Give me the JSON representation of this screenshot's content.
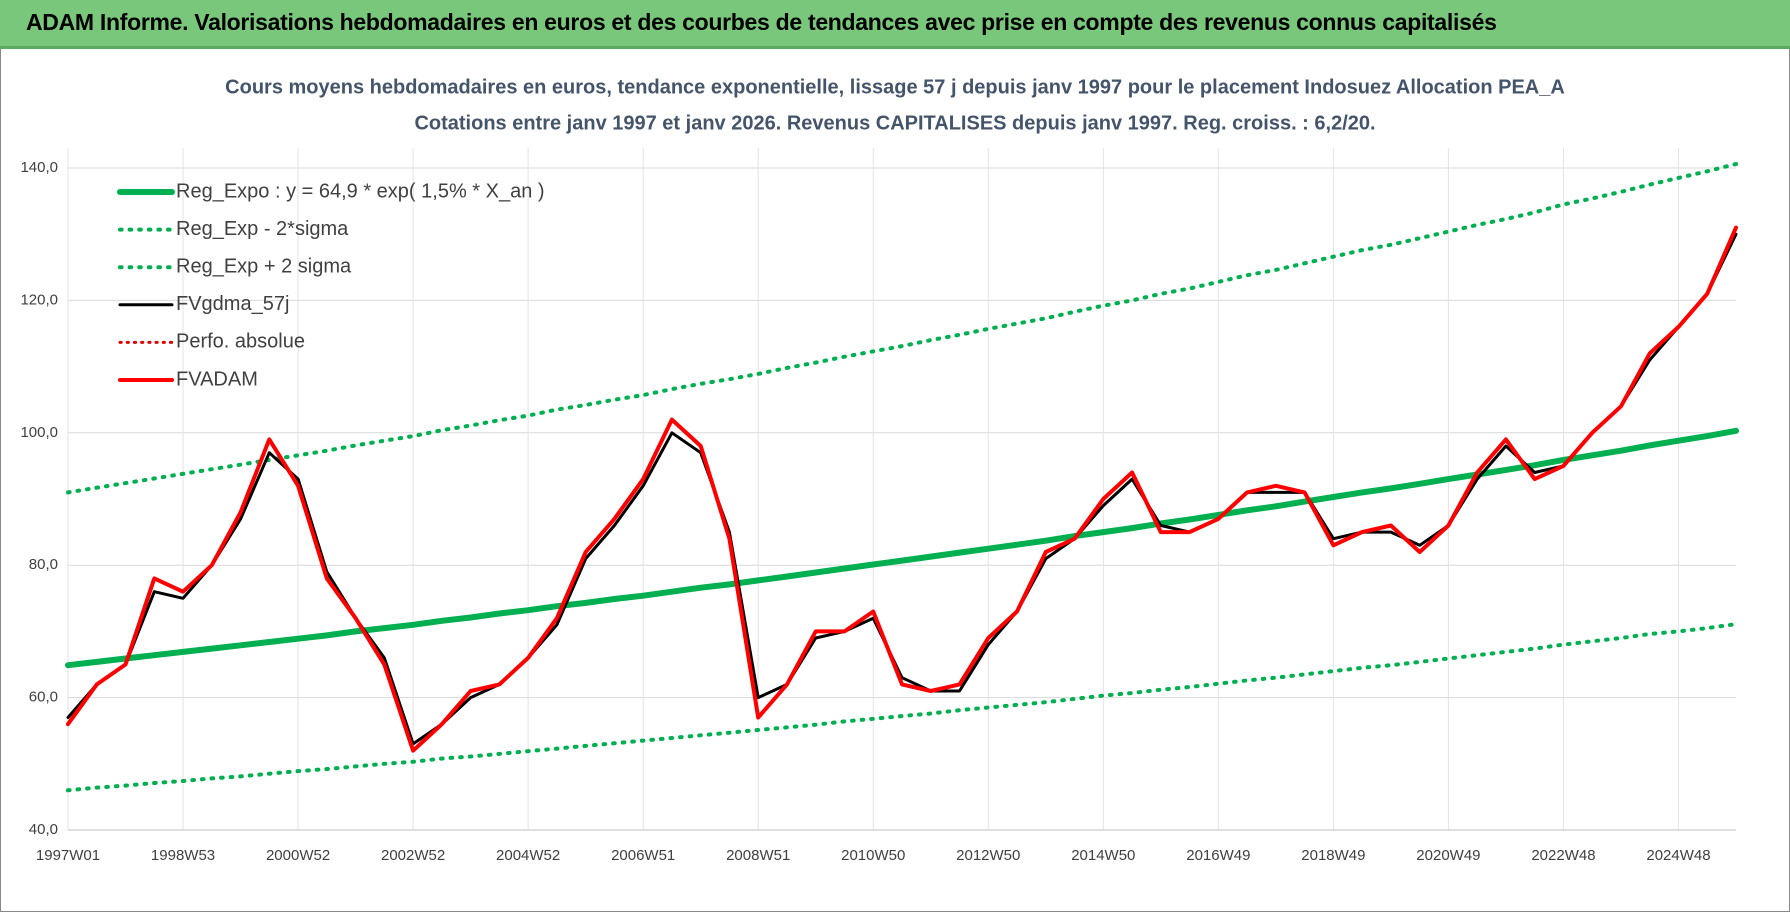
{
  "header": {
    "title": "ADAM Informe. Valorisations hebdomadaires en euros et des courbes de tendances avec prise en compte des revenus connus capitalisés"
  },
  "chart_data": {
    "type": "line",
    "title": "Cours moyens hebdomadaires en euros, tendance exponentielle, lissage 57 j depuis janv 1997 pour le placement Indosuez Allocation PEA_A",
    "subtitle": "Cotations entre janv 1997 et janv 2026. Revenus CAPITALISES depuis janv 1997. Reg. croiss. : 6,2/20.",
    "categories": [
      "1997W01",
      null,
      null,
      null,
      "1998W53",
      null,
      null,
      null,
      "2000W52",
      null,
      null,
      null,
      "2002W52",
      null,
      null,
      null,
      "2004W52",
      null,
      null,
      null,
      "2006W51",
      null,
      null,
      null,
      "2008W51",
      null,
      null,
      null,
      "2010W50",
      null,
      null,
      null,
      "2012W50",
      null,
      null,
      null,
      "2014W50",
      null,
      null,
      null,
      "2016W49",
      null,
      null,
      null,
      "2018W49",
      null,
      null,
      null,
      "2020W49",
      null,
      null,
      null,
      "2022W48",
      null,
      null,
      null,
      "2024W48",
      null,
      null
    ],
    "ylim": [
      40,
      140
    ],
    "yticks": [
      {
        "value": 40,
        "label": "40,0"
      },
      {
        "value": 60,
        "label": "60,0"
      },
      {
        "value": 80,
        "label": "80,0"
      },
      {
        "value": 100,
        "label": "100,0"
      },
      {
        "value": 120,
        "label": "120,0"
      },
      {
        "value": 140,
        "label": "140,0"
      }
    ],
    "grid": true,
    "legend": "top-left",
    "series": [
      {
        "name": "Reg_Expo : y = 64,9 * exp( 1,5% *  X_an )",
        "color": "#00b050",
        "style": "solid",
        "width": 6,
        "values": [
          64.9,
          65.4,
          65.9,
          66.4,
          66.9,
          67.4,
          67.9,
          68.4,
          68.9,
          69.4,
          70.0,
          70.5,
          71.0,
          71.6,
          72.1,
          72.7,
          73.2,
          73.8,
          74.3,
          74.9,
          75.4,
          76.0,
          76.6,
          77.1,
          77.7,
          78.3,
          78.9,
          79.5,
          80.1,
          80.7,
          81.3,
          81.9,
          82.5,
          83.1,
          83.7,
          84.4,
          85.0,
          85.6,
          86.3,
          86.9,
          87.6,
          88.3,
          88.9,
          89.6,
          90.3,
          91.0,
          91.6,
          92.3,
          93.0,
          93.7,
          94.4,
          95.1,
          95.9,
          96.6,
          97.3,
          98.1,
          98.8,
          99.5,
          100.3
        ]
      },
      {
        "name": "Reg_Exp - 2*sigma",
        "color": "#00b050",
        "style": "dotted",
        "width": 4,
        "values": [
          46.0,
          46.4,
          46.7,
          47.1,
          47.4,
          47.8,
          48.1,
          48.5,
          48.9,
          49.2,
          49.6,
          50.0,
          50.3,
          50.8,
          51.1,
          51.5,
          51.9,
          52.3,
          52.7,
          53.1,
          53.5,
          53.9,
          54.3,
          54.7,
          55.1,
          55.5,
          55.9,
          56.4,
          56.8,
          57.2,
          57.6,
          58.1,
          58.5,
          58.9,
          59.3,
          59.8,
          60.3,
          60.7,
          61.2,
          61.6,
          62.1,
          62.6,
          63.0,
          63.5,
          64.0,
          64.5,
          64.9,
          65.4,
          65.9,
          66.4,
          66.9,
          67.4,
          68.0,
          68.5,
          69.0,
          69.6,
          70.0,
          70.5,
          71.1
        ]
      },
      {
        "name": "Reg_Exp + 2 sigma",
        "color": "#00b050",
        "style": "dotted",
        "width": 4,
        "values": [
          91.0,
          91.7,
          92.4,
          93.1,
          93.8,
          94.5,
          95.2,
          95.9,
          96.6,
          97.3,
          98.1,
          98.8,
          99.5,
          100.4,
          101.1,
          101.9,
          102.6,
          103.5,
          104.2,
          105.0,
          105.7,
          106.6,
          107.4,
          108.1,
          108.9,
          109.8,
          110.6,
          111.5,
          112.3,
          113.1,
          114.0,
          114.8,
          115.7,
          116.5,
          117.3,
          118.3,
          119.2,
          120.0,
          121.0,
          121.8,
          122.8,
          123.8,
          124.6,
          125.6,
          126.6,
          127.6,
          128.4,
          129.4,
          130.4,
          131.4,
          132.3,
          133.3,
          134.5,
          135.4,
          136.4,
          137.5,
          138.5,
          139.5,
          140.6
        ]
      },
      {
        "name": "FVgdma_57j",
        "color": "#000000",
        "style": "solid",
        "width": 3,
        "values": [
          57,
          62,
          65,
          76,
          75,
          80,
          87,
          97,
          93,
          79,
          72,
          66,
          53,
          56,
          60,
          62,
          66,
          71,
          81,
          86,
          92,
          100,
          97,
          85,
          60,
          62,
          69,
          70,
          72,
          63,
          61,
          61,
          68,
          73,
          81,
          84,
          89,
          93,
          86,
          85,
          87,
          91,
          91,
          91,
          84,
          85,
          85,
          83,
          86,
          93,
          98,
          94,
          95,
          100,
          104,
          111,
          116,
          121,
          130
        ]
      },
      {
        "name": "Perfo. absolue",
        "color": "#e00000",
        "style": "dotted",
        "width": 3,
        "values": [
          null,
          null,
          null,
          null,
          null,
          null,
          null,
          null,
          null,
          null,
          null,
          null,
          null,
          null,
          null,
          null,
          null,
          null,
          null,
          null,
          null,
          null,
          null,
          null,
          null,
          null,
          null,
          null,
          null,
          null,
          null,
          null,
          null,
          null,
          null,
          null,
          null,
          null,
          null,
          null,
          null,
          null,
          null,
          null,
          null,
          null,
          null,
          null,
          null,
          null,
          null,
          null,
          null,
          null,
          null,
          null,
          null,
          null,
          null
        ]
      },
      {
        "name": "FVADAM",
        "color": "#ff0000",
        "style": "solid",
        "width": 4,
        "values": [
          56,
          62,
          65,
          78,
          76,
          80,
          88,
          99,
          92,
          78,
          72,
          65,
          52,
          56,
          61,
          62,
          66,
          72,
          82,
          87,
          93,
          102,
          98,
          84,
          57,
          62,
          70,
          70,
          73,
          62,
          61,
          62,
          69,
          73,
          82,
          84,
          90,
          94,
          85,
          85,
          87,
          91,
          92,
          91,
          83,
          85,
          86,
          82,
          86,
          94,
          99,
          93,
          95,
          100,
          104,
          112,
          116,
          121,
          131
        ]
      }
    ]
  }
}
